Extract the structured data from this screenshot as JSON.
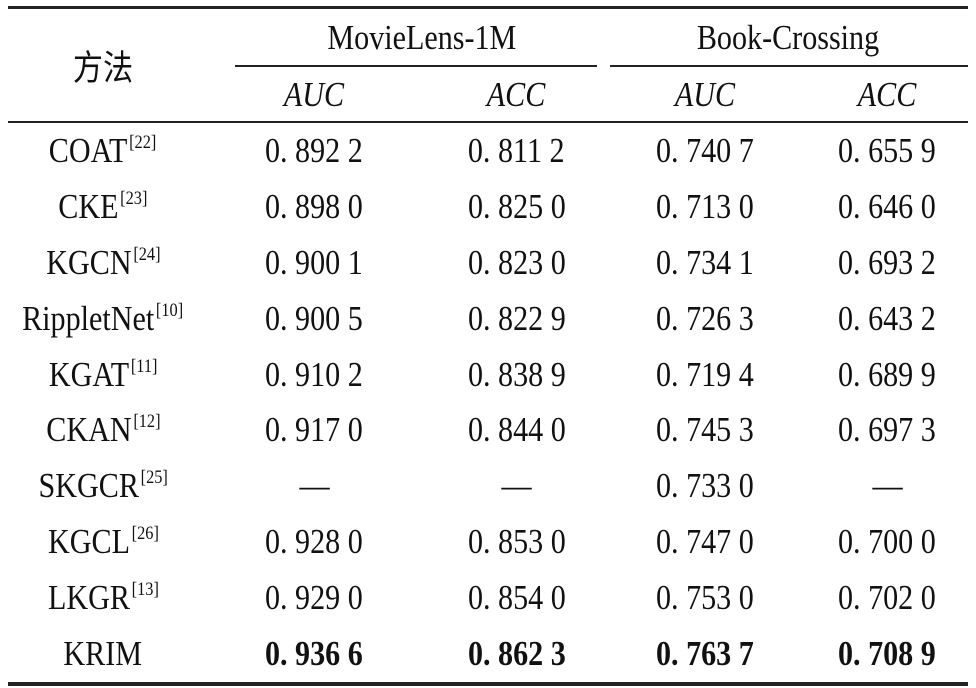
{
  "table": {
    "method_header": "方法",
    "groups": [
      {
        "label": "MovieLens-1M",
        "metrics": [
          "AUC",
          "ACC"
        ]
      },
      {
        "label": "Book-Crossing",
        "metrics": [
          "AUC",
          "ACC"
        ]
      }
    ],
    "rows": [
      {
        "method": "COAT",
        "ref": "[22]",
        "values": [
          "0. 892 2",
          "0. 811 2",
          "0. 740 7",
          "0. 655 9"
        ]
      },
      {
        "method": "CKE",
        "ref": "[23]",
        "values": [
          "0. 898 0",
          "0. 825 0",
          "0. 713 0",
          "0. 646 0"
        ]
      },
      {
        "method": "KGCN",
        "ref": "[24]",
        "values": [
          "0. 900 1",
          "0. 823 0",
          "0. 734 1",
          "0. 693 2"
        ]
      },
      {
        "method": "RippletNet",
        "ref": "[10]",
        "values": [
          "0. 900 5",
          "0. 822 9",
          "0. 726 3",
          "0. 643 2"
        ]
      },
      {
        "method": "KGAT",
        "ref": "[11]",
        "values": [
          "0. 910 2",
          "0. 838 9",
          "0. 719 4",
          "0. 689 9"
        ]
      },
      {
        "method": "CKAN",
        "ref": "[12]",
        "values": [
          "0. 917 0",
          "0. 844 0",
          "0. 745 3",
          "0. 697 3"
        ]
      },
      {
        "method": "SKGCR",
        "ref": "[25]",
        "values": [
          "—",
          "—",
          "0. 733 0",
          "—"
        ]
      },
      {
        "method": "KGCL",
        "ref": "[26]",
        "values": [
          "0. 928 0",
          "0. 853 0",
          "0. 747 0",
          "0. 700 0"
        ]
      },
      {
        "method": "LKGR",
        "ref": "[13]",
        "values": [
          "0. 929 0",
          "0. 854 0",
          "0. 753 0",
          "0. 702 0"
        ]
      },
      {
        "method": "KRIM",
        "ref": "",
        "bold": true,
        "values": [
          "0. 936 6",
          "0. 862 3",
          "0. 763 7",
          "0. 708 9"
        ]
      }
    ]
  }
}
